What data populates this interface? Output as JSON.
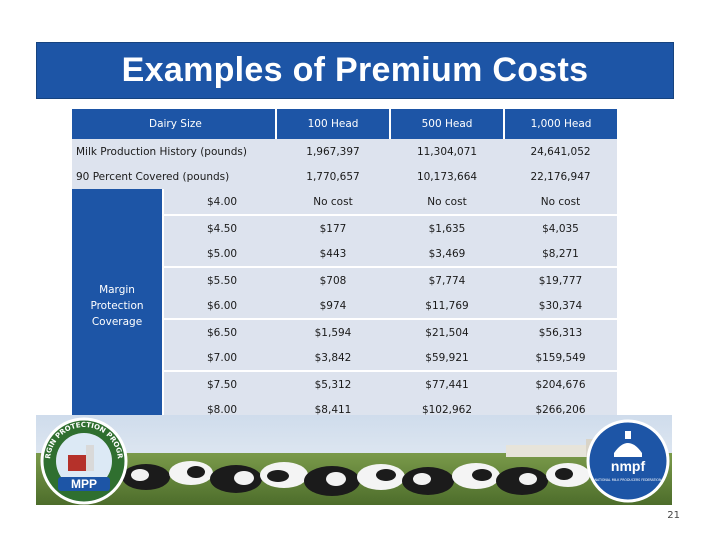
{
  "title": "Examples of Premium Costs",
  "table": {
    "header": {
      "label": "Dairy Size",
      "cols": [
        "100 Head",
        "500 Head",
        "1,000 Head"
      ]
    },
    "summary_rows": [
      {
        "label": "Milk Production History (pounds)",
        "values": [
          "1,967,397",
          "11,304,071",
          "24,641,052"
        ]
      },
      {
        "label": "90 Percent Covered (pounds)",
        "values": [
          "1,770,657",
          "10,173,664",
          "22,176,947"
        ]
      }
    ],
    "coverage_label": "Margin Protection Coverage",
    "coverage_rows": [
      {
        "level": "$4.00",
        "values": [
          "No cost",
          "No cost",
          "No cost"
        ]
      },
      {
        "level": "$4.50",
        "values": [
          "$177",
          "$1,635",
          "$4,035"
        ]
      },
      {
        "level": "$5.00",
        "values": [
          "$443",
          "$3,469",
          "$8,271"
        ]
      },
      {
        "level": "$5.50",
        "values": [
          "$708",
          "$7,774",
          "$19,777"
        ]
      },
      {
        "level": "$6.00",
        "values": [
          "$974",
          "$11,769",
          "$30,374"
        ]
      },
      {
        "level": "$6.50",
        "values": [
          "$1,594",
          "$21,504",
          "$56,313"
        ]
      },
      {
        "level": "$7.00",
        "values": [
          "$3,842",
          "$59,921",
          "$159,549"
        ]
      },
      {
        "level": "$7.50",
        "values": [
          "$5,312",
          "$77,441",
          "$204,676"
        ]
      },
      {
        "level": "$8.00",
        "values": [
          "$8,411",
          "$102,962",
          "$266,206"
        ]
      }
    ]
  },
  "logos": {
    "left": {
      "top_text": "MARGIN PROTECTION PROGRAM",
      "acronym": "MPP"
    },
    "right": {
      "acronym": "nmpf",
      "subtext": "NATIONAL MILK PRODUCERS FEDERATION"
    }
  },
  "page_number": "21",
  "colors": {
    "accent": "#1d55a6",
    "band": "#dde3ee"
  }
}
